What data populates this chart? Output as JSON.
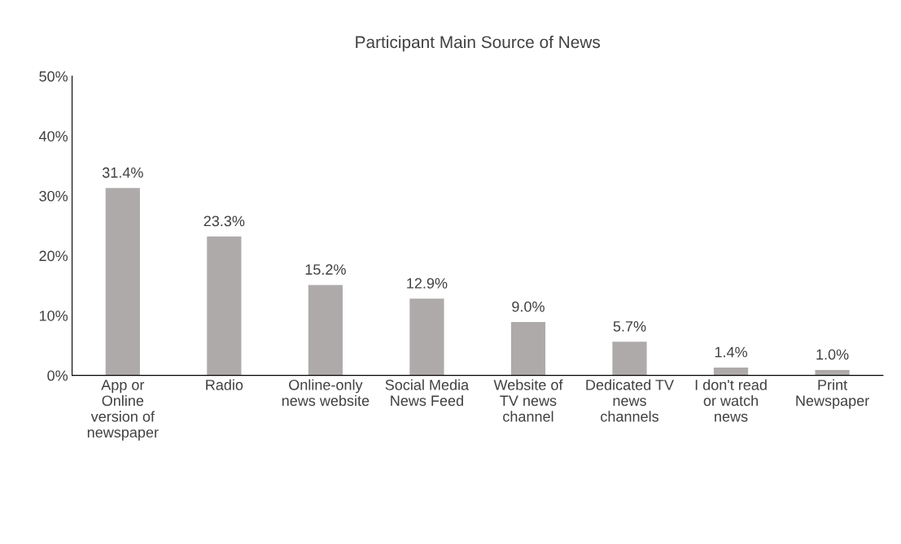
{
  "chart_data": {
    "type": "bar",
    "title": "Participant Main Source of News",
    "categories": [
      "App or Online version of newspaper",
      "Radio",
      "Online-only news website",
      "Social Media News Feed",
      "Website of TV news channel",
      "Dedicated TV news channels",
      "I don't read or watch news",
      "Print Newspaper"
    ],
    "values": [
      31.4,
      23.3,
      15.2,
      12.9,
      9.0,
      5.7,
      1.4,
      1.0
    ],
    "value_labels": [
      "31.4%",
      "23.3%",
      "15.2%",
      "12.9%",
      "9.0%",
      "5.7%",
      "1.4%",
      "1.0%"
    ],
    "color": "#aeaaaa",
    "ylim": [
      0,
      50
    ],
    "yticks": [
      {
        "value": 0,
        "label": "0%"
      },
      {
        "value": 10,
        "label": "10%"
      },
      {
        "value": 20,
        "label": "20%"
      },
      {
        "value": 30,
        "label": "30%"
      },
      {
        "value": 40,
        "label": "40%"
      },
      {
        "value": 50,
        "label": "50%"
      }
    ],
    "grid": false,
    "legend": false
  }
}
